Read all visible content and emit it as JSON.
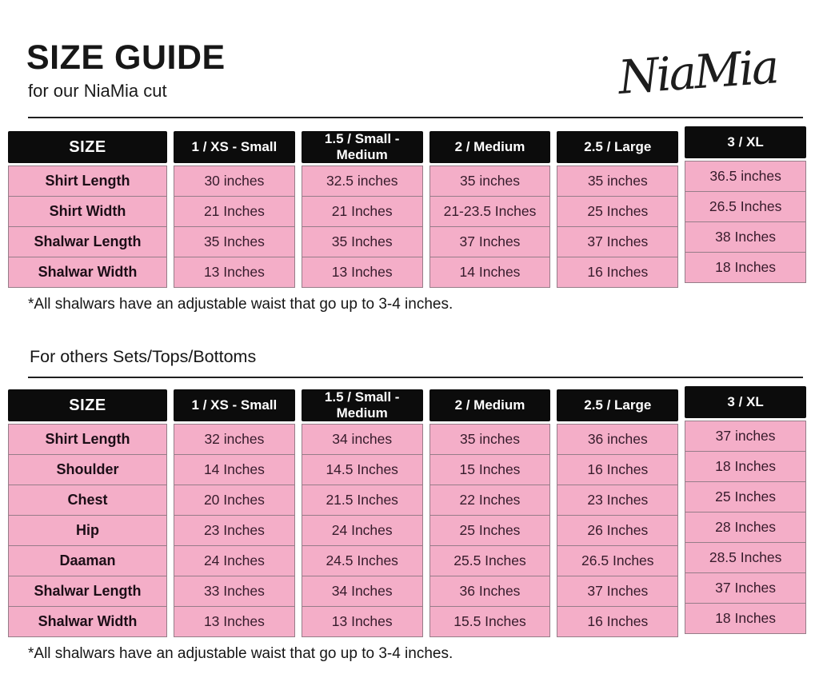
{
  "page": {
    "title": "SIZE GUIDE",
    "subtitle": "for our NiaMia cut",
    "brand": "NiaMia",
    "section2_heading": "For others Sets/Tops/Bottoms"
  },
  "colors": {
    "header_bg": "#0c0c0c",
    "header_text": "#ffffff",
    "cell_bg": "#f4aec8",
    "cell_border": "#967d89",
    "cell_text": "#361b2b"
  },
  "table1": {
    "columns": [
      "SIZE",
      "1 / XS - Small",
      "1.5 / Small - Medium",
      "2 / Medium",
      "2.5 / Large",
      "3 / XL"
    ],
    "rows": [
      {
        "label": "Shirt Length",
        "values": [
          "30 inches",
          "32.5 inches",
          "35 inches",
          "35 inches",
          "36.5 inches"
        ]
      },
      {
        "label": "Shirt Width",
        "values": [
          "21 Inches",
          "21 Inches",
          "21-23.5 Inches",
          "25 Inches",
          "26.5 Inches"
        ]
      },
      {
        "label": "Shalwar Length",
        "values": [
          "35 Inches",
          "35 Inches",
          "37 Inches",
          "37 Inches",
          "38 Inches"
        ]
      },
      {
        "label": "Shalwar Width",
        "values": [
          "13 Inches",
          "13 Inches",
          "14 Inches",
          "16 Inches",
          "18 Inches"
        ]
      }
    ],
    "footnote": "*All shalwars have an adjustable waist that go up to 3-4 inches."
  },
  "table2": {
    "columns": [
      "SIZE",
      "1 / XS - Small",
      "1.5 / Small - Medium",
      "2 / Medium",
      "2.5 / Large",
      "3 / XL"
    ],
    "rows": [
      {
        "label": "Shirt Length",
        "values": [
          "32 inches",
          "34 inches",
          "35 inches",
          "36 inches",
          "37 inches"
        ]
      },
      {
        "label": "Shoulder",
        "values": [
          "14 Inches",
          "14.5 Inches",
          "15 Inches",
          "16 Inches",
          "18 Inches"
        ]
      },
      {
        "label": "Chest",
        "values": [
          "20 Inches",
          "21.5 Inches",
          "22 Inches",
          "23 Inches",
          "25 Inches"
        ]
      },
      {
        "label": "Hip",
        "values": [
          "23 Inches",
          "24 Inches",
          "25 Inches",
          "26 Inches",
          "28 Inches"
        ]
      },
      {
        "label": "Daaman",
        "values": [
          "24 Inches",
          "24.5 Inches",
          "25.5 Inches",
          "26.5 Inches",
          "28.5 Inches"
        ]
      },
      {
        "label": "Shalwar Length",
        "values": [
          "33 Inches",
          "34 Inches",
          "36 Inches",
          "37 Inches",
          "37 Inches"
        ]
      },
      {
        "label": "Shalwar Width",
        "values": [
          "13 Inches",
          "13 Inches",
          "15.5 Inches",
          "16 Inches",
          "18 Inches"
        ]
      }
    ],
    "footnote": "*All shalwars have an adjustable waist that go up to 3-4 inches."
  }
}
